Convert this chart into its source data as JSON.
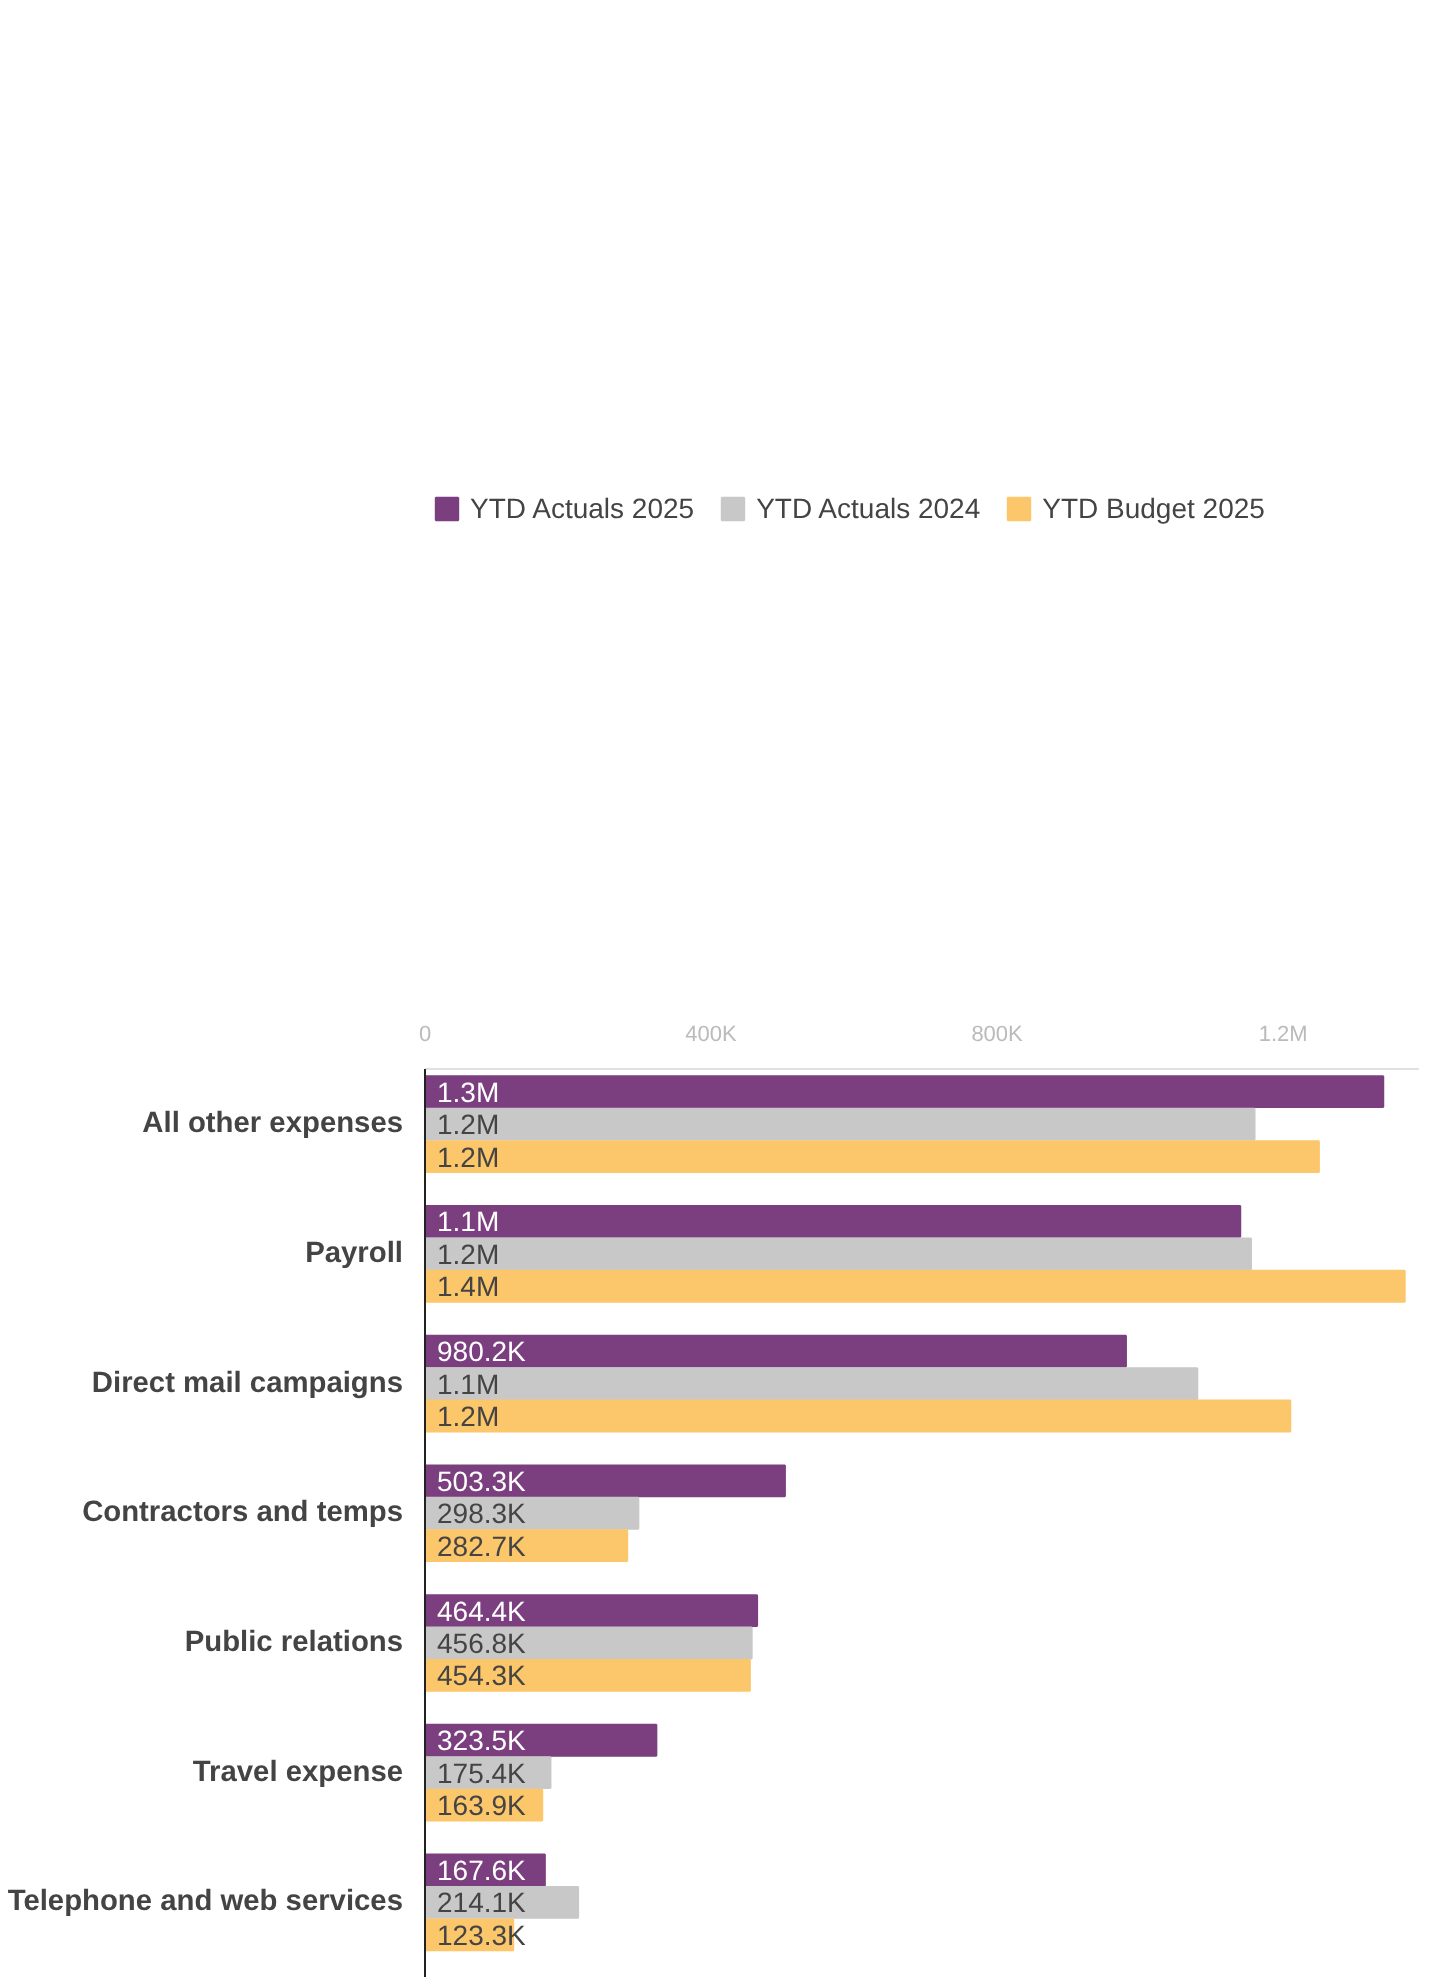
{
  "chart_data": {
    "type": "bar",
    "orientation": "horizontal",
    "categories": [
      "All other expenses",
      "Payroll",
      "Direct mail campaigns",
      "Contractors and temps",
      "Public relations",
      "Travel expense",
      "Telephone and web services"
    ],
    "series": [
      {
        "name": "YTD Actuals 2025",
        "color": "#7b3f7f",
        "values": [
          1340000,
          1140000,
          980200,
          503300,
          464400,
          323500,
          167600
        ],
        "value_labels": [
          "1.3M",
          "1.1M",
          "980.2K",
          "503.3K",
          "464.4K",
          "323.5K",
          "167.6K"
        ]
      },
      {
        "name": "YTD Actuals 2024",
        "color": "#c8c8c8",
        "values": [
          1160000,
          1155000,
          1080000,
          298300,
          456800,
          175400,
          214100
        ],
        "value_labels": [
          "1.2M",
          "1.2M",
          "1.1M",
          "298.3K",
          "456.8K",
          "175.4K",
          "214.1K"
        ]
      },
      {
        "name": "YTD Budget 2025",
        "color": "#fcc66a",
        "values": [
          1250000,
          1370000,
          1210000,
          282700,
          454300,
          163900,
          123300
        ],
        "value_labels": [
          "1.2M",
          "1.4M",
          "1.2M",
          "282.7K",
          "454.3K",
          "163.9K",
          "123.3K"
        ]
      }
    ],
    "xlim": [
      0,
      1390000
    ],
    "xticks": [
      0,
      {
        "value": 400000,
        "label": "400K"
      },
      {
        "value": 800000,
        "label": "800K"
      },
      {
        "value": 1200000,
        "label": "1.2M"
      }
    ],
    "grid": false,
    "legend": "top left"
  }
}
